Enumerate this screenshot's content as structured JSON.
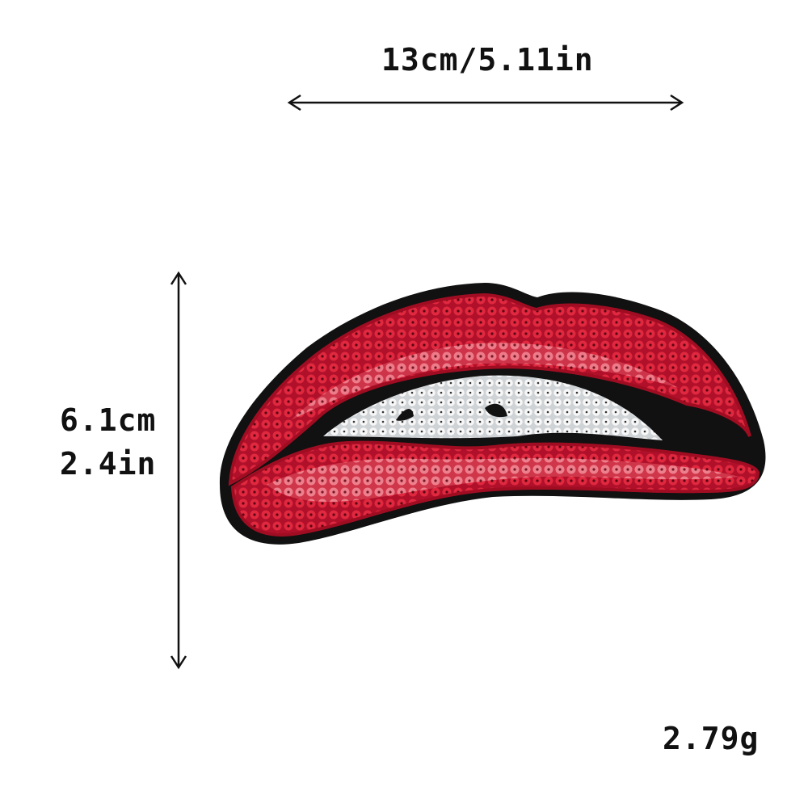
{
  "dimensions": {
    "width_label": "13cm/5.11in",
    "height_cm_label": "6.1cm",
    "height_in_label": "2.4in",
    "weight_label": "2.79g"
  },
  "product": {
    "icon": "sequin-lips-patch",
    "colors": {
      "border": "#111111",
      "lip_red": "#c8102e",
      "lip_highlight": "#ee6677",
      "teeth": "#f2f2f2",
      "background": "#ffffff"
    }
  }
}
